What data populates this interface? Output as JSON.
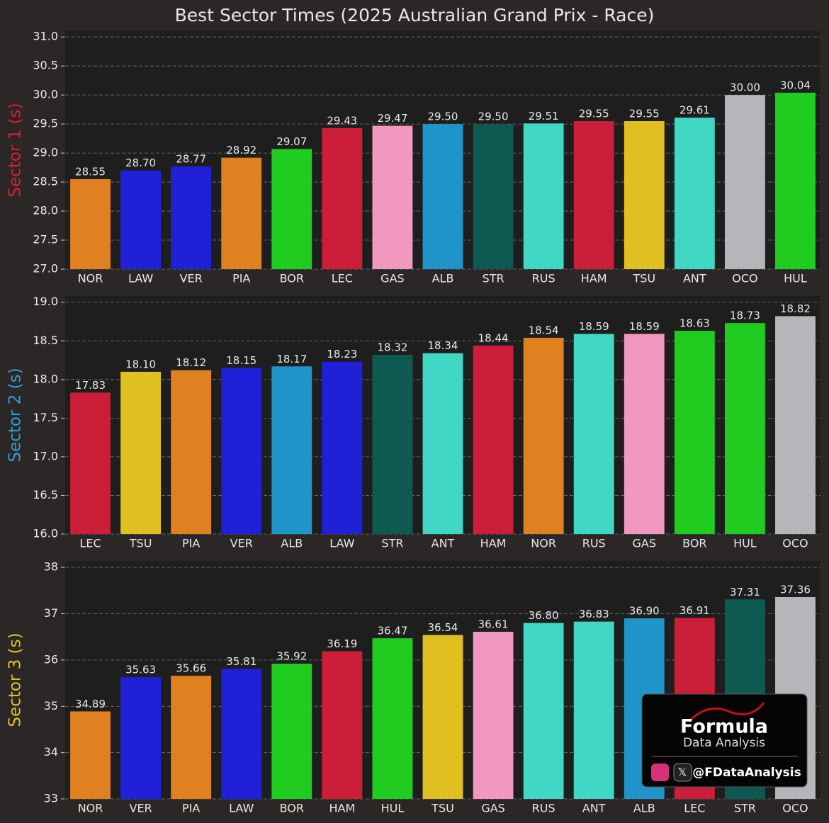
{
  "title": "Best Sector Times (2025 Australian Grand Prix - Race)",
  "watermark": {
    "brand": "Formula",
    "subtitle": "Data Analysis",
    "handle": "@FDataAnalysis"
  },
  "chart_data": [
    {
      "type": "bar",
      "ylabel": "Sector 1 (s)",
      "ylabel_color": "#d8202c",
      "grid": true,
      "categories": [
        "NOR",
        "LAW",
        "VER",
        "PIA",
        "BOR",
        "LEC",
        "GAS",
        "ALB",
        "STR",
        "RUS",
        "HAM",
        "TSU",
        "ANT",
        "OCO",
        "HUL"
      ],
      "values": [
        28.55,
        28.7,
        28.77,
        28.92,
        29.07,
        29.43,
        29.47,
        29.5,
        29.5,
        29.51,
        29.55,
        29.55,
        29.61,
        30.0,
        30.04
      ],
      "value_labels": [
        "28.55",
        "28.70",
        "28.77",
        "28.92",
        "29.07",
        "29.43",
        "29.47",
        "29.50",
        "29.50",
        "29.51",
        "29.55",
        "29.55",
        "29.61",
        "30.00",
        "30.04"
      ],
      "colors": [
        "#e08020",
        "#2020d8",
        "#2020d8",
        "#e08020",
        "#20cc20",
        "#cc1e38",
        "#f098c0",
        "#1e94c8",
        "#0e5a52",
        "#40d8c4",
        "#cc1e38",
        "#e0c020",
        "#40d8c4",
        "#b4b6ba",
        "#20cc20"
      ],
      "ylim": [
        27,
        31.1
      ],
      "yticks": [
        {
          "value": 27,
          "label": "27.0"
        },
        {
          "value": 27.5,
          "label": "27.5"
        },
        {
          "value": 28,
          "label": "28.0"
        },
        {
          "value": 28.5,
          "label": "28.5"
        },
        {
          "value": 29,
          "label": "29.0"
        },
        {
          "value": 29.5,
          "label": "29.5"
        },
        {
          "value": 30,
          "label": "30.0"
        },
        {
          "value": 30.5,
          "label": "30.5"
        },
        {
          "value": 31,
          "label": "31.0"
        }
      ]
    },
    {
      "type": "bar",
      "ylabel": "Sector 2 (s)",
      "ylabel_color": "#2a9fd8",
      "grid": true,
      "categories": [
        "LEC",
        "TSU",
        "PIA",
        "VER",
        "ALB",
        "LAW",
        "STR",
        "ANT",
        "HAM",
        "NOR",
        "RUS",
        "GAS",
        "BOR",
        "HUL",
        "OCO"
      ],
      "values": [
        17.83,
        18.1,
        18.12,
        18.15,
        18.17,
        18.23,
        18.32,
        18.34,
        18.44,
        18.54,
        18.59,
        18.59,
        18.63,
        18.73,
        18.82
      ],
      "value_labels": [
        "17.83",
        "18.10",
        "18.12",
        "18.15",
        "18.17",
        "18.23",
        "18.32",
        "18.34",
        "18.44",
        "18.54",
        "18.59",
        "18.59",
        "18.63",
        "18.73",
        "18.82"
      ],
      "colors": [
        "#cc1e38",
        "#e0c020",
        "#e08020",
        "#2020d8",
        "#1e94c8",
        "#2020d8",
        "#0e5a52",
        "#40d8c4",
        "#cc1e38",
        "#e08020",
        "#40d8c4",
        "#f098c0",
        "#20cc20",
        "#20cc20",
        "#b4b6ba"
      ],
      "ylim": [
        16,
        19.08
      ],
      "yticks": [
        {
          "value": 16,
          "label": "16.0"
        },
        {
          "value": 16.5,
          "label": "16.5"
        },
        {
          "value": 17,
          "label": "17.0"
        },
        {
          "value": 17.5,
          "label": "17.5"
        },
        {
          "value": 18,
          "label": "18.0"
        },
        {
          "value": 18.5,
          "label": "18.5"
        },
        {
          "value": 19,
          "label": "19.0"
        }
      ]
    },
    {
      "type": "bar",
      "ylabel": "Sector 3 (s)",
      "ylabel_color": "#e0c020",
      "grid": true,
      "categories": [
        "NOR",
        "VER",
        "PIA",
        "LAW",
        "BOR",
        "HAM",
        "HUL",
        "TSU",
        "GAS",
        "RUS",
        "ANT",
        "ALB",
        "LEC",
        "STR",
        "OCO"
      ],
      "values": [
        34.89,
        35.63,
        35.66,
        35.81,
        35.92,
        36.19,
        36.47,
        36.54,
        36.61,
        36.8,
        36.83,
        36.9,
        36.91,
        37.31,
        37.36
      ],
      "value_labels": [
        "34.89",
        "35.63",
        "35.66",
        "35.81",
        "35.92",
        "36.19",
        "36.47",
        "36.54",
        "36.61",
        "36.80",
        "36.83",
        "36.90",
        "36.91",
        "37.31",
        "37.36"
      ],
      "colors": [
        "#e08020",
        "#2020d8",
        "#e08020",
        "#2020d8",
        "#20cc20",
        "#cc1e38",
        "#20cc20",
        "#e0c020",
        "#f098c0",
        "#40d8c4",
        "#40d8c4",
        "#1e94c8",
        "#cc1e38",
        "#0e5a52",
        "#b4b6ba"
      ],
      "ylim": [
        33,
        38.14
      ],
      "yticks": [
        33,
        34,
        35,
        36,
        37,
        38
      ]
    }
  ]
}
